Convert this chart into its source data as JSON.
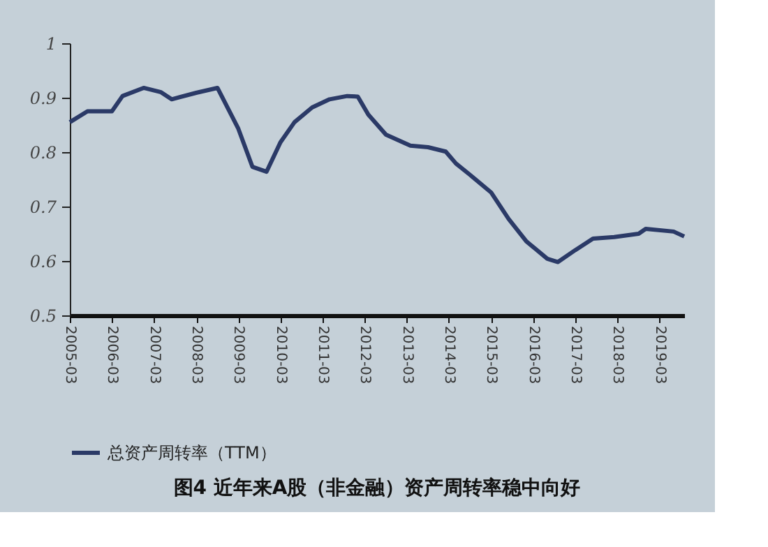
{
  "chart_data": {
    "type": "line",
    "title": "图4  近年来A股（非金融）资产周转率稳中向好",
    "x": [
      "2005-03",
      "2005-08",
      "2006-03",
      "2006-06",
      "2006-12",
      "2007-05",
      "2007-08",
      "2008-03",
      "2008-09",
      "2009-03",
      "2009-07",
      "2009-11",
      "2010-03",
      "2010-07",
      "2010-12",
      "2011-05",
      "2011-10",
      "2012-01",
      "2012-04",
      "2012-09",
      "2013-04",
      "2013-09",
      "2014-02",
      "2014-05",
      "2014-09",
      "2015-03",
      "2015-08",
      "2016-01",
      "2016-07",
      "2016-10",
      "2017-03",
      "2017-08",
      "2018-02",
      "2018-09",
      "2018-11",
      "2019-07",
      "2019-10"
    ],
    "series": [
      {
        "name": "总资产周转率（TTM）",
        "color": "#2b3a67",
        "values": [
          0.855,
          0.875,
          0.875,
          0.903,
          0.918,
          0.91,
          0.897,
          0.909,
          0.918,
          0.843,
          0.773,
          0.764,
          0.818,
          0.855,
          0.882,
          0.897,
          0.903,
          0.902,
          0.869,
          0.832,
          0.812,
          0.809,
          0.801,
          0.779,
          0.758,
          0.726,
          0.677,
          0.636,
          0.604,
          0.598,
          0.62,
          0.641,
          0.644,
          0.65,
          0.659,
          0.654,
          0.645
        ]
      }
    ],
    "xlim": [
      "2005-03",
      "2019-10"
    ],
    "xticks": [
      "2005-03",
      "2006-03",
      "2007-03",
      "2008-03",
      "2009-03",
      "2010-03",
      "2011-03",
      "2012-03",
      "2013-03",
      "2014-03",
      "2015-03",
      "2016-03",
      "2017-03",
      "2018-03",
      "2019-03"
    ],
    "ylim": [
      0.5,
      1
    ],
    "yticks": [
      0.5,
      0.6,
      0.7,
      0.8,
      0.9,
      {
        "value": 1,
        "label": "1"
      }
    ],
    "grid": false,
    "legend": "bottom",
    "marker": "none",
    "line_style": "solid"
  }
}
